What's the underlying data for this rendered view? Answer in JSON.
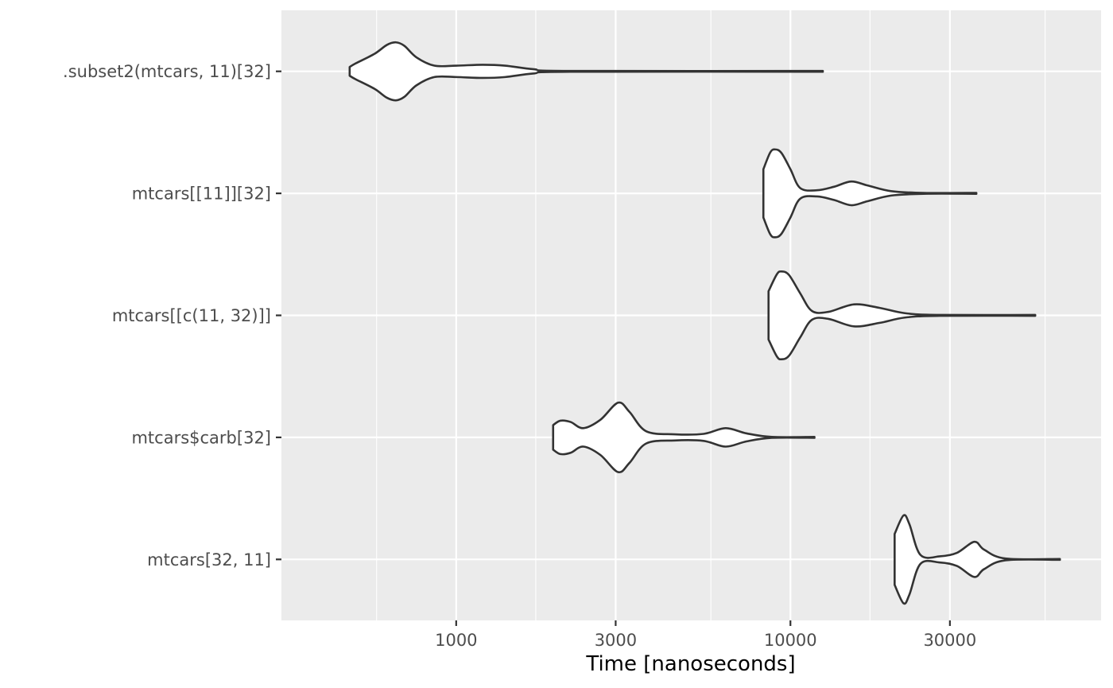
{
  "chart_data": {
    "type": "violin",
    "orientation": "horizontal",
    "x_scale": "log10",
    "xlabel": "Time [nanoseconds]",
    "ylabel": "",
    "xlim": [
      300,
      85000
    ],
    "x_ticks": [
      1000,
      3000,
      10000,
      30000
    ],
    "x_tick_labels": [
      "1000",
      "3000",
      "10000",
      "30000"
    ],
    "x_minor_grid": [
      578,
      1730,
      5780,
      17300,
      57800
    ],
    "grid": true,
    "panel_background": "#ebebeb",
    "grid_color": "#ffffff",
    "outline_color": "#333333",
    "fill_color": "#ffffff",
    "categories": [
      ".subset2(mtcars, 11)[32]",
      "mtcars[[11]][32]",
      "mtcars[[c(11, 32)]]",
      "mtcars$carb[32]",
      "mtcars[32, 11]"
    ],
    "series": [
      {
        "label": ".subset2(mtcars, 11)[32]",
        "min": 480,
        "max": 12500,
        "profile": [
          [
            480,
            0.1
          ],
          [
            500,
            0.18
          ],
          [
            570,
            0.4
          ],
          [
            620,
            0.6
          ],
          [
            660,
            0.66
          ],
          [
            700,
            0.58
          ],
          [
            760,
            0.32
          ],
          [
            860,
            0.13
          ],
          [
            1000,
            0.13
          ],
          [
            1200,
            0.15
          ],
          [
            1400,
            0.13
          ],
          [
            1700,
            0.05
          ],
          [
            2200,
            0.01
          ],
          [
            12500,
            0.01
          ]
        ]
      },
      {
        "label": "mtcars[[11]][32]",
        "min": 8300,
        "max": 36000,
        "profile": [
          [
            8300,
            0.55
          ],
          [
            8700,
            0.93
          ],
          [
            9000,
            1.0
          ],
          [
            9400,
            0.92
          ],
          [
            10000,
            0.55
          ],
          [
            10700,
            0.12
          ],
          [
            12000,
            0.07
          ],
          [
            13500,
            0.15
          ],
          [
            15200,
            0.27
          ],
          [
            17000,
            0.18
          ],
          [
            20000,
            0.05
          ],
          [
            25000,
            0.01
          ],
          [
            36000,
            0.01
          ]
        ]
      },
      {
        "label": "mtcars[[c(11, 32)]]",
        "min": 8600,
        "max": 54000,
        "profile": [
          [
            8600,
            0.55
          ],
          [
            9100,
            0.93
          ],
          [
            9400,
            1.0
          ],
          [
            9900,
            0.92
          ],
          [
            10700,
            0.5
          ],
          [
            11600,
            0.1
          ],
          [
            13000,
            0.08
          ],
          [
            15500,
            0.25
          ],
          [
            18500,
            0.17
          ],
          [
            22000,
            0.05
          ],
          [
            28000,
            0.01
          ],
          [
            54000,
            0.01
          ]
        ]
      },
      {
        "label": "mtcars$carb[32]",
        "min": 1950,
        "max": 11800,
        "profile": [
          [
            1950,
            0.28
          ],
          [
            2050,
            0.38
          ],
          [
            2200,
            0.35
          ],
          [
            2400,
            0.21
          ],
          [
            2700,
            0.4
          ],
          [
            3050,
            0.79
          ],
          [
            3300,
            0.58
          ],
          [
            3700,
            0.14
          ],
          [
            4500,
            0.07
          ],
          [
            5500,
            0.08
          ],
          [
            6400,
            0.21
          ],
          [
            7400,
            0.09
          ],
          [
            8800,
            0.01
          ],
          [
            11800,
            0.01
          ]
        ]
      },
      {
        "label": "mtcars[32, 11]",
        "min": 20500,
        "max": 64000,
        "profile": [
          [
            20500,
            0.58
          ],
          [
            21800,
            1.0
          ],
          [
            22700,
            0.8
          ],
          [
            24500,
            0.1
          ],
          [
            28000,
            0.07
          ],
          [
            31500,
            0.15
          ],
          [
            35500,
            0.4
          ],
          [
            38000,
            0.22
          ],
          [
            44000,
            0.02
          ],
          [
            64000,
            0.01
          ]
        ]
      }
    ]
  }
}
